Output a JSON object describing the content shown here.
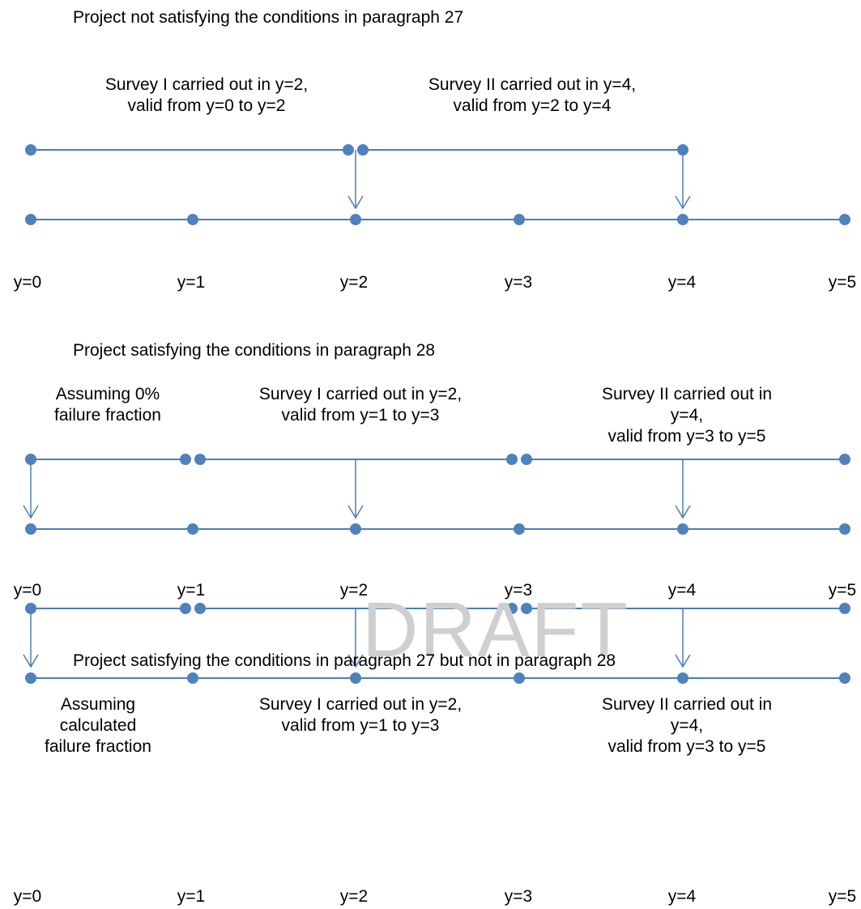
{
  "watermark": "DRAFT",
  "colors": {
    "line": "#4A7EBB",
    "dot": "#4F81BD",
    "text": "#000000",
    "watermark": "#cfcfcf"
  },
  "ticks": [
    "y=0",
    "y=1",
    "y=2",
    "y=3",
    "y=4",
    "y=5"
  ],
  "panels": [
    {
      "title": "Project not satisfying the conditions in paragraph 27",
      "labels": [
        {
          "text": "Survey I carried out in y=2,\nvalid from y=0 to y=2"
        },
        {
          "text": "Survey II carried out in y=4,\nvalid from y=2 to y=4"
        }
      ],
      "segments": [
        {
          "from": 0,
          "to": 2,
          "arrow_at": 2
        },
        {
          "from": 2,
          "to": 4,
          "arrow_at": 4
        }
      ]
    },
    {
      "title": "Project satisfying the conditions in paragraph 28",
      "labels": [
        {
          "text": "Assuming 0%\nfailure fraction"
        },
        {
          "text": "Survey I carried out in y=2,\nvalid from y=1 to y=3"
        },
        {
          "text": "Survey II carried out in y=4,\nvalid from y=3 to y=5"
        }
      ],
      "segments": [
        {
          "from": 0,
          "to": 1,
          "arrow_at": 0
        },
        {
          "from": 1,
          "to": 3,
          "arrow_at": 2
        },
        {
          "from": 3,
          "to": 5,
          "arrow_at": 4
        }
      ]
    },
    {
      "title": "Project satisfying the conditions in paragraph 27 but not in paragraph 28",
      "labels": [
        {
          "text": "Assuming\ncalculated\nfailure fraction"
        },
        {
          "text": "Survey I carried out in y=2,\nvalid from y=1 to y=3"
        },
        {
          "text": "Survey II carried out in y=4,\nvalid from y=3 to y=5"
        }
      ],
      "segments": [
        {
          "from": 0,
          "to": 1,
          "arrow_at": 0
        },
        {
          "from": 1,
          "to": 3,
          "arrow_at": 2
        },
        {
          "from": 3,
          "to": 5,
          "arrow_at": 4
        }
      ]
    }
  ]
}
